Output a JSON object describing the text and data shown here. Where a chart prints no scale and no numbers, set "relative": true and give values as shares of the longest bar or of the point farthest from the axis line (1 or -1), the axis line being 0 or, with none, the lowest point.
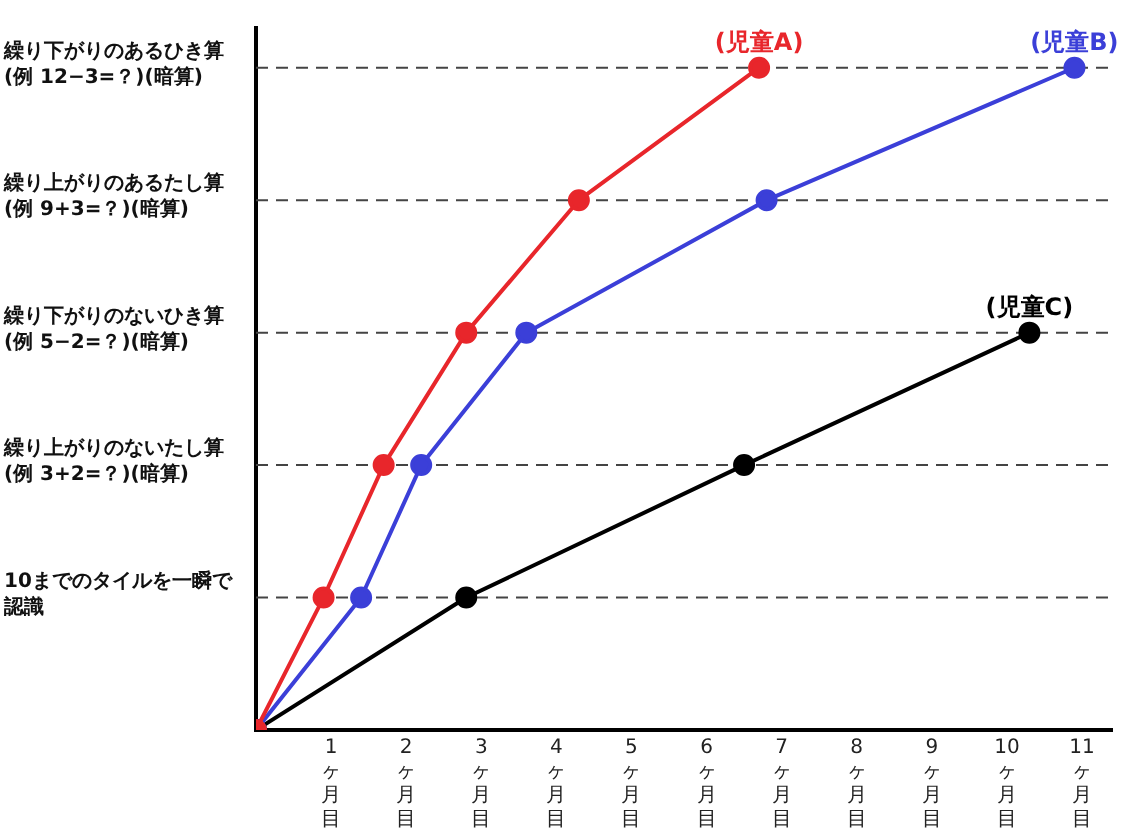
{
  "chart_data": {
    "type": "line",
    "relative": true,
    "xlim": [
      0,
      11.4
    ],
    "xticks": [
      {
        "value": 1,
        "label": "1ヶ月目"
      },
      {
        "value": 2,
        "label": "2ヶ月目"
      },
      {
        "value": 3,
        "label": "3ヶ月目"
      },
      {
        "value": 4,
        "label": "4ヶ月目"
      },
      {
        "value": 5,
        "label": "5ヶ月目"
      },
      {
        "value": 6,
        "label": "6ヶ月目"
      },
      {
        "value": 7,
        "label": "7ヶ月目"
      },
      {
        "value": 8,
        "label": "8ヶ月目"
      },
      {
        "value": 9,
        "label": "9ヶ月目"
      },
      {
        "value": 10,
        "label": "10ヶ月目"
      },
      {
        "value": 11,
        "label": "11ヶ月目"
      }
    ],
    "ref_lines": [
      {
        "axis": "y",
        "value": 0.2,
        "label": "10までのタイルを一瞬で認識",
        "line_style": "dashed"
      },
      {
        "axis": "y",
        "value": 0.4,
        "label": "繰り上がりのないたし算\n(例 3+2=？)(暗算)",
        "line_style": "dashed"
      },
      {
        "axis": "y",
        "value": 0.6,
        "label": "繰り下がりのないひき算\n(例 5−2=？)(暗算)",
        "line_style": "dashed"
      },
      {
        "axis": "y",
        "value": 0.8,
        "label": "繰り上がりのあるたし算\n(例 9+3=？)(暗算)",
        "line_style": "dashed"
      },
      {
        "axis": "y",
        "value": 1,
        "label": "繰り下がりのあるひき算\n(例 12−3=？)(暗算)",
        "line_style": "dashed"
      }
    ],
    "legend": false,
    "marker": "circle",
    "line_style": "solid",
    "series": [
      {
        "name": "(児童A)",
        "color": "#e8262b",
        "x": [
          0,
          0.9,
          1.7,
          2.8,
          4.3,
          6.7
        ],
        "values": [
          0,
          0.2,
          0.4,
          0.6,
          0.8,
          1
        ]
      },
      {
        "name": "(児童B)",
        "color": "#3b3fd8",
        "x": [
          0,
          1.4,
          2.2,
          3.6,
          6.8,
          10.9
        ],
        "values": [
          0,
          0.2,
          0.4,
          0.6,
          0.8,
          1
        ]
      },
      {
        "name": "(児童C)",
        "color": "#000000",
        "x": [
          0,
          2.8,
          6.5,
          10.3
        ],
        "values": [
          0,
          0.2,
          0.4,
          0.6
        ]
      }
    ]
  }
}
